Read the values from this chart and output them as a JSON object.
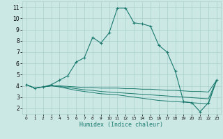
{
  "xlabel": "Humidex (Indice chaleur)",
  "x_values": [
    0,
    1,
    2,
    3,
    4,
    5,
    6,
    7,
    8,
    9,
    10,
    11,
    12,
    13,
    14,
    15,
    16,
    17,
    18,
    19,
    20,
    21,
    22,
    23
  ],
  "line1": [
    4.1,
    3.8,
    3.9,
    4.1,
    4.5,
    4.9,
    6.1,
    6.5,
    8.3,
    7.8,
    8.7,
    10.9,
    10.9,
    9.6,
    9.5,
    9.3,
    7.6,
    7.0,
    5.3,
    2.6,
    2.5,
    1.7,
    2.5,
    4.5
  ],
  "line2": [
    4.1,
    3.8,
    3.9,
    4.0,
    4.0,
    3.95,
    3.9,
    3.85,
    3.85,
    3.8,
    3.8,
    3.8,
    3.75,
    3.75,
    3.7,
    3.7,
    3.65,
    3.6,
    3.6,
    3.55,
    3.5,
    3.5,
    3.45,
    4.5
  ],
  "line3": [
    4.1,
    3.8,
    3.9,
    4.0,
    3.95,
    3.85,
    3.75,
    3.65,
    3.6,
    3.5,
    3.45,
    3.4,
    3.35,
    3.3,
    3.25,
    3.2,
    3.15,
    3.1,
    3.05,
    3.0,
    2.95,
    2.9,
    2.85,
    4.5
  ],
  "line4": [
    4.1,
    3.8,
    3.9,
    4.0,
    3.9,
    3.75,
    3.6,
    3.5,
    3.4,
    3.3,
    3.25,
    3.2,
    3.1,
    3.0,
    2.9,
    2.8,
    2.7,
    2.65,
    2.6,
    2.55,
    2.5,
    2.45,
    2.4,
    4.5
  ],
  "line_color": "#1a7a6e",
  "bg_color": "#cce8e5",
  "grid_color": "#aad0cc",
  "ylim": [
    1.5,
    11.5
  ],
  "xlim": [
    -0.5,
    23.5
  ],
  "yticks": [
    2,
    3,
    4,
    5,
    6,
    7,
    8,
    9,
    10,
    11
  ],
  "xticks": [
    0,
    1,
    2,
    3,
    4,
    5,
    6,
    7,
    8,
    9,
    10,
    11,
    12,
    13,
    14,
    15,
    16,
    17,
    18,
    19,
    20,
    21,
    22,
    23
  ]
}
